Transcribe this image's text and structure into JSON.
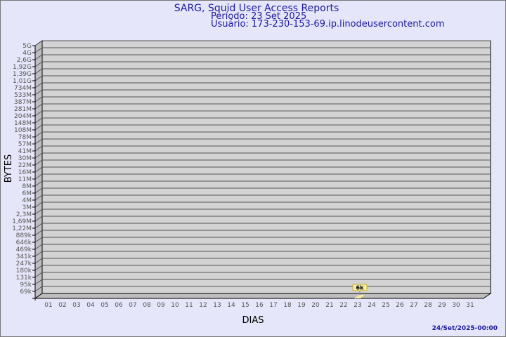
{
  "header": {
    "title": "SARG, Squid User Access Reports",
    "period": "Período: 23 Set 2025",
    "user": "Usuário: 173-230-153-69.ip.linodeusercontent.com"
  },
  "footer": {
    "timestamp": "24/Set/2025-00:00"
  },
  "colors": {
    "title": "#1a1a9a",
    "wall": "#d3d3d3",
    "side": "#bebebe",
    "bar": "#f5e6a0",
    "label_box": "#f5eea0"
  },
  "chart_data": {
    "type": "bar",
    "title": "SARG, Squid User Access Reports",
    "xlabel": "DIAS",
    "ylabel": "BYTES",
    "y_scale": "log",
    "y_ticks": [
      "5G",
      "4G",
      "2,6G",
      "1,92G",
      "1,39G",
      "1,01G",
      "734M",
      "533M",
      "387M",
      "281M",
      "204M",
      "148M",
      "108M",
      "78M",
      "57M",
      "41M",
      "30M",
      "22M",
      "16M",
      "11M",
      "8M",
      "6M",
      "4M",
      "3M",
      "2,3M",
      "1,69M",
      "1,22M",
      "889k",
      "646k",
      "469k",
      "341k",
      "247k",
      "180k",
      "131k",
      "95k",
      "69k"
    ],
    "categories": [
      "01",
      "02",
      "03",
      "04",
      "05",
      "06",
      "07",
      "08",
      "09",
      "10",
      "11",
      "12",
      "13",
      "14",
      "15",
      "16",
      "17",
      "18",
      "19",
      "20",
      "21",
      "22",
      "23",
      "24",
      "25",
      "26",
      "27",
      "28",
      "29",
      "30",
      "31"
    ],
    "values": [
      {
        "day": "23",
        "value": 6000,
        "label": "6k"
      }
    ],
    "grid": true
  }
}
